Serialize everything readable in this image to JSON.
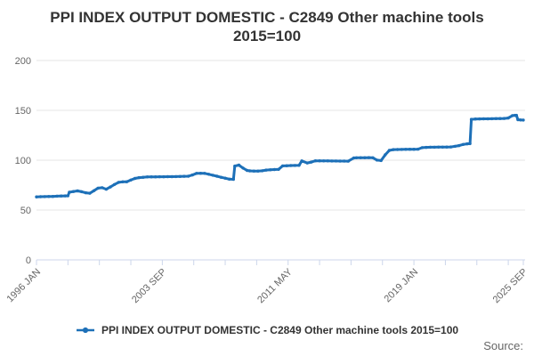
{
  "title": "PPI INDEX OUTPUT DOMESTIC - C2849 Other machine tools 2015=100",
  "legend": {
    "label": "PPI INDEX OUTPUT DOMESTIC - C2849 Other machine tools 2015=100"
  },
  "source_label": "Source:",
  "chart_data": {
    "type": "line",
    "title": "PPI INDEX OUTPUT DOMESTIC - C2849 Other machine tools 2015=100",
    "xlabel": "",
    "ylabel": "",
    "ylim": [
      0,
      200
    ],
    "yticks": [
      0,
      50,
      100,
      150,
      200
    ],
    "grid": "horizontal",
    "legend_position": "bottom",
    "x_start": "1996 JAN",
    "x_end": "2025 SEP",
    "x_labeled_ticks": [
      "1996 JAN",
      "2003 SEP",
      "2011 MAY",
      "2019 JAN",
      "2025 SEP"
    ],
    "x_minor_tick_interval_months": 23,
    "colors": {
      "series": "#1d70b8",
      "grid": "#e6e6e6",
      "axis_line": "#ccd6eb",
      "axis_label": "#666666",
      "title": "#333333"
    },
    "series": [
      {
        "name": "PPI INDEX OUTPUT DOMESTIC - C2849 Other machine tools 2015=100",
        "color": "#1d70b8",
        "points": [
          [
            "1996 JAN",
            63.2
          ],
          [
            "1996 APR",
            63.4
          ],
          [
            "1996 JUL",
            63.5
          ],
          [
            "1996 OCT",
            63.6
          ],
          [
            "1997 JAN",
            63.7
          ],
          [
            "1997 APR",
            63.9
          ],
          [
            "1997 JUL",
            64.1
          ],
          [
            "1997 OCT",
            64.2
          ],
          [
            "1997 DEC",
            64.3
          ],
          [
            "1998 JAN",
            67.9
          ],
          [
            "1998 APR",
            68.6
          ],
          [
            "1998 JUL",
            69.2
          ],
          [
            "1998 OCT",
            68.4
          ],
          [
            "1999 JAN",
            67.3
          ],
          [
            "1999 APR",
            66.9
          ],
          [
            "1999 JUL",
            69.4
          ],
          [
            "1999 OCT",
            72.0
          ],
          [
            "2000 JAN",
            72.4
          ],
          [
            "2000 APR",
            70.9
          ],
          [
            "2000 JUL",
            73.1
          ],
          [
            "2000 OCT",
            75.6
          ],
          [
            "2001 JAN",
            77.8
          ],
          [
            "2001 APR",
            78.3
          ],
          [
            "2001 JUL",
            78.4
          ],
          [
            "2001 OCT",
            80.1
          ],
          [
            "2002 JAN",
            81.7
          ],
          [
            "2002 APR",
            82.5
          ],
          [
            "2002 JUL",
            82.9
          ],
          [
            "2002 OCT",
            83.2
          ],
          [
            "2003 JAN",
            83.3
          ],
          [
            "2003 APR",
            83.3
          ],
          [
            "2003 JUL",
            83.4
          ],
          [
            "2003 OCT",
            83.4
          ],
          [
            "2004 JAN",
            83.5
          ],
          [
            "2004 APR",
            83.5
          ],
          [
            "2004 JUL",
            83.6
          ],
          [
            "2004 OCT",
            83.7
          ],
          [
            "2005 JAN",
            83.8
          ],
          [
            "2005 APR",
            83.9
          ],
          [
            "2005 JUL",
            85.2
          ],
          [
            "2005 OCT",
            86.8
          ],
          [
            "2006 JAN",
            86.9
          ],
          [
            "2006 APR",
            86.8
          ],
          [
            "2006 JUL",
            85.9
          ],
          [
            "2006 OCT",
            84.9
          ],
          [
            "2007 JAN",
            83.9
          ],
          [
            "2007 APR",
            82.9
          ],
          [
            "2007 JUL",
            82.0
          ],
          [
            "2007 OCT",
            81.0
          ],
          [
            "2008 JAN",
            80.8
          ],
          [
            "2008 FEB",
            94.1
          ],
          [
            "2008 MAY",
            95.1
          ],
          [
            "2008 AUG",
            92.1
          ],
          [
            "2008 NOV",
            89.7
          ],
          [
            "2009 JAN",
            89.3
          ],
          [
            "2009 APR",
            89.1
          ],
          [
            "2009 JUL",
            89.1
          ],
          [
            "2009 OCT",
            89.4
          ],
          [
            "2010 JAN",
            90.1
          ],
          [
            "2010 APR",
            90.4
          ],
          [
            "2010 JUL",
            90.6
          ],
          [
            "2010 OCT",
            90.8
          ],
          [
            "2011 JAN",
            94.3
          ],
          [
            "2011 APR",
            94.5
          ],
          [
            "2011 JUL",
            94.6
          ],
          [
            "2011 OCT",
            94.7
          ],
          [
            "2012 JAN",
            94.8
          ],
          [
            "2012 MAR",
            99.3
          ],
          [
            "2012 JUL",
            97.2
          ],
          [
            "2012 OCT",
            98.1
          ],
          [
            "2013 JAN",
            99.4
          ],
          [
            "2013 APR",
            99.4
          ],
          [
            "2013 JUL",
            99.3
          ],
          [
            "2013 OCT",
            99.3
          ],
          [
            "2014 JAN",
            99.2
          ],
          [
            "2014 APR",
            99.2
          ],
          [
            "2014 JUL",
            99.1
          ],
          [
            "2014 OCT",
            99.1
          ],
          [
            "2015 JAN",
            99.0
          ],
          [
            "2015 MAY",
            102.2
          ],
          [
            "2015 JUL",
            102.4
          ],
          [
            "2015 OCT",
            102.5
          ],
          [
            "2016 JAN",
            102.5
          ],
          [
            "2016 APR",
            102.6
          ],
          [
            "2016 JUL",
            102.4
          ],
          [
            "2016 OCT",
            100.1
          ],
          [
            "2017 JAN",
            99.6
          ],
          [
            "2017 APR",
            105.4
          ],
          [
            "2017 JUL",
            109.8
          ],
          [
            "2017 OCT",
            110.6
          ],
          [
            "2018 JAN",
            110.7
          ],
          [
            "2018 APR",
            110.8
          ],
          [
            "2018 JUL",
            110.9
          ],
          [
            "2018 OCT",
            111.0
          ],
          [
            "2019 JAN",
            111.0
          ],
          [
            "2019 APR",
            111.1
          ],
          [
            "2019 JUL",
            112.6
          ],
          [
            "2019 OCT",
            112.9
          ],
          [
            "2020 JAN",
            113.0
          ],
          [
            "2020 APR",
            113.0
          ],
          [
            "2020 JUL",
            113.1
          ],
          [
            "2020 OCT",
            113.1
          ],
          [
            "2021 JAN",
            113.2
          ],
          [
            "2021 APR",
            113.3
          ],
          [
            "2021 JUL",
            113.9
          ],
          [
            "2021 OCT",
            114.6
          ],
          [
            "2022 JAN",
            115.8
          ],
          [
            "2022 APR",
            116.4
          ],
          [
            "2022 JUN",
            116.6
          ],
          [
            "2022 JUL",
            141.0
          ],
          [
            "2022 OCT",
            141.3
          ],
          [
            "2023 JAN",
            141.4
          ],
          [
            "2023 APR",
            141.5
          ],
          [
            "2023 JUL",
            141.5
          ],
          [
            "2023 OCT",
            141.6
          ],
          [
            "2024 JAN",
            141.7
          ],
          [
            "2024 APR",
            141.8
          ],
          [
            "2024 JUL",
            141.9
          ],
          [
            "2024 OCT",
            142.3
          ],
          [
            "2025 JAN",
            144.7
          ],
          [
            "2025 MAR",
            145.0
          ],
          [
            "2025 APR",
            145.0
          ],
          [
            "2025 MAY",
            140.6
          ],
          [
            "2025 JUL",
            140.4
          ],
          [
            "2025 SEP",
            140.3
          ]
        ]
      }
    ]
  }
}
